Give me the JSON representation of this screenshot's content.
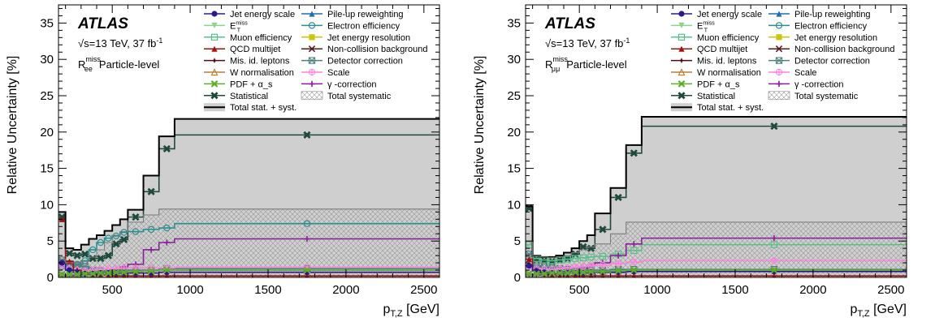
{
  "chart_data": [
    {
      "type": "line",
      "experiment": "ATLAS",
      "energy_label": "√s=13 TeV, 37 fb",
      "lumi_exponent": "-1",
      "ratio_symbol": "R",
      "ratio_sup": "miss",
      "ratio_sub": "ee",
      "level_label": "Particle-level",
      "xlabel_main": "p",
      "xlabel_sub": "T,Z",
      "xlabel_unit": " [GeV]",
      "ylabel": "Relative Uncertainty [%]",
      "xlim": [
        155,
        2600
      ],
      "ylim": [
        0,
        37.5
      ],
      "xticks": [
        500,
        1000,
        1500,
        2000,
        2500
      ],
      "yticks": [
        0,
        5,
        10,
        15,
        20,
        25,
        30,
        35
      ],
      "bin_edges": [
        155,
        200,
        250,
        300,
        350,
        400,
        450,
        500,
        550,
        600,
        700,
        800,
        900,
        2600
      ],
      "legend": {
        "left": [
          {
            "label": "Jet energy scale",
            "marker": "circle-filled",
            "color": "#2b1a8f"
          },
          {
            "label": "E",
            "sub": "T",
            "sup": "miss",
            "marker": "triangle-down",
            "color": "#8fd18f"
          },
          {
            "label": "Muon efficiency",
            "marker": "square-open",
            "color": "#5cc08a"
          },
          {
            "label": "QCD multijet",
            "marker": "triangle-up",
            "color": "#a01010"
          },
          {
            "label": "Mis. id. leptons",
            "marker": "star",
            "color": "#4a0a14"
          },
          {
            "label": "W normalisation",
            "marker": "triangle-open",
            "color": "#c07a30"
          },
          {
            "label": "PDF + α_s",
            "marker": "cross",
            "color": "#5fae2a"
          },
          {
            "label": "Statistical",
            "marker": "cross-thick",
            "color": "#1e4a3e"
          },
          {
            "label": "Total stat. + syst.",
            "marker": "band-filled",
            "color": "#d0cfd0"
          }
        ],
        "right": [
          {
            "label": "Pile-up reweighting",
            "marker": "triangle-up",
            "color": "#1f6fb8"
          },
          {
            "label": "Electron efficiency",
            "marker": "circle-open",
            "color": "#2a8f8f"
          },
          {
            "label": "Jet energy resolution",
            "marker": "square-filled",
            "color": "#c8c80a"
          },
          {
            "label": "Non-collision background",
            "marker": "x",
            "color": "#5a1820"
          },
          {
            "label": "Detector correction",
            "marker": "square-x",
            "color": "#4f8080"
          },
          {
            "label": "Scale",
            "marker": "circle-plus",
            "color": "#ff80e0"
          },
          {
            "label": "γ -correction",
            "marker": "plus",
            "color": "#8a1e9a"
          },
          {
            "label": "Total systematic",
            "marker": "band-hatched",
            "color": "#b0b0b0"
          }
        ]
      },
      "total_values": [
        9.0,
        4.0,
        3.8,
        4.5,
        5.3,
        5.8,
        6.4,
        7.2,
        8.0,
        9.3,
        14.0,
        19.4,
        21.8
      ],
      "systematic_values": [
        2.5,
        2.0,
        2.0,
        2.2,
        2.8,
        3.8,
        4.8,
        5.8,
        6.3,
        7.6,
        8.6,
        9.4,
        9.4
      ],
      "series": [
        {
          "name": "Statistical",
          "color": "#1e4a3e",
          "values": [
            8.3,
            3.3,
            3.0,
            3.2,
            2.6,
            2.6,
            3.0,
            4.6,
            5.2,
            8.3,
            11.8,
            17.7,
            19.6
          ]
        },
        {
          "name": "Electron efficiency",
          "color": "#2a8f8f",
          "values": [
            1.5,
            1.6,
            1.8,
            2.3,
            3.8,
            4.8,
            5.4,
            5.7,
            6.2,
            6.3,
            6.6,
            6.8,
            7.4
          ]
        },
        {
          "name": "γ -correction",
          "color": "#8a1e9a",
          "values": [
            0.3,
            0.2,
            0.3,
            0.4,
            0.5,
            0.6,
            0.8,
            1.0,
            1.4,
            1.8,
            3.8,
            4.8,
            5.3
          ]
        },
        {
          "name": "Detector correction",
          "color": "#4f8080",
          "values": [
            2.4,
            1.9,
            1.7,
            1.5,
            1.0,
            0.9,
            0.8,
            0.7,
            0.9,
            1.0,
            1.0,
            1.2,
            1.2
          ]
        },
        {
          "name": "Scale",
          "color": "#ff80e0",
          "values": [
            1.6,
            1.2,
            1.0,
            0.9,
            1.0,
            1.1,
            1.2,
            1.2,
            1.3,
            1.3,
            1.3,
            1.3,
            1.4
          ]
        },
        {
          "name": "QCD multijet",
          "color": "#a01010",
          "values": [
            8.0,
            2.2,
            1.0,
            0.6,
            0.4,
            0.3,
            0.3,
            0.2,
            0.2,
            0.2,
            0.2,
            0.2,
            0.2
          ]
        },
        {
          "name": "Jet energy scale",
          "color": "#2b1a8f",
          "values": [
            2.0,
            1.0,
            0.7,
            0.5,
            0.5,
            0.6,
            0.6,
            0.6,
            0.6,
            0.6,
            0.6,
            0.7,
            0.7
          ]
        },
        {
          "name": "PDF + α_s",
          "color": "#5fae2a",
          "values": [
            0.4,
            0.4,
            0.4,
            0.5,
            0.5,
            0.6,
            0.6,
            0.7,
            0.7,
            0.8,
            0.9,
            1.0,
            1.0
          ]
        }
      ]
    },
    {
      "type": "line",
      "experiment": "ATLAS",
      "energy_label": "√s=13 TeV, 37 fb",
      "lumi_exponent": "-1",
      "ratio_symbol": "R",
      "ratio_sup": "miss",
      "ratio_sub": "μμ",
      "level_label": "Particle-level",
      "xlabel_main": "p",
      "xlabel_sub": "T,Z",
      "xlabel_unit": " [GeV]",
      "ylabel": "Relative Uncertainty [%]",
      "xlim": [
        155,
        2600
      ],
      "ylim": [
        0,
        37.5
      ],
      "xticks": [
        500,
        1000,
        1500,
        2000,
        2500
      ],
      "yticks": [
        0,
        5,
        10,
        15,
        20,
        25,
        30,
        35
      ],
      "bin_edges": [
        155,
        200,
        250,
        300,
        350,
        400,
        450,
        500,
        550,
        600,
        700,
        800,
        900,
        2600
      ],
      "legend": {
        "left": [
          {
            "label": "Jet energy scale",
            "marker": "circle-filled",
            "color": "#2b1a8f"
          },
          {
            "label": "E",
            "sub": "T",
            "sup": "miss",
            "marker": "triangle-down",
            "color": "#8fd18f"
          },
          {
            "label": "Muon efficiency",
            "marker": "square-open",
            "color": "#5cc08a"
          },
          {
            "label": "QCD multijet",
            "marker": "triangle-up",
            "color": "#a01010"
          },
          {
            "label": "Mis. id. leptons",
            "marker": "star",
            "color": "#4a0a14"
          },
          {
            "label": "W normalisation",
            "marker": "triangle-open",
            "color": "#c07a30"
          },
          {
            "label": "PDF + α_s",
            "marker": "cross",
            "color": "#5fae2a"
          },
          {
            "label": "Statistical",
            "marker": "cross-thick",
            "color": "#1e4a3e"
          },
          {
            "label": "Total stat. + syst.",
            "marker": "band-filled",
            "color": "#d0cfd0"
          }
        ],
        "right": [
          {
            "label": "Pile-up reweighting",
            "marker": "triangle-up",
            "color": "#1f6fb8"
          },
          {
            "label": "Electron efficiency",
            "marker": "circle-open",
            "color": "#2a8f8f"
          },
          {
            "label": "Jet energy resolution",
            "marker": "square-filled",
            "color": "#c8c80a"
          },
          {
            "label": "Non-collision background",
            "marker": "x",
            "color": "#5a1820"
          },
          {
            "label": "Detector correction",
            "marker": "square-x",
            "color": "#4f8080"
          },
          {
            "label": "Scale",
            "marker": "circle-plus",
            "color": "#ff80e0"
          },
          {
            "label": "γ -correction",
            "marker": "plus",
            "color": "#8a1e9a"
          },
          {
            "label": "Total systematic",
            "marker": "band-hatched",
            "color": "#b0b0b0"
          }
        ]
      },
      "total_values": [
        9.8,
        3.0,
        2.8,
        2.8,
        3.0,
        3.4,
        4.0,
        5.0,
        5.8,
        8.8,
        12.3,
        18.2,
        22.1
      ],
      "systematic_values": [
        5.0,
        3.0,
        2.8,
        2.7,
        2.8,
        3.0,
        3.4,
        3.8,
        4.2,
        4.6,
        6.0,
        7.6,
        7.6
      ],
      "series": [
        {
          "name": "Statistical",
          "color": "#1e4a3e",
          "values": [
            9.5,
            2.5,
            2.3,
            2.2,
            2.4,
            2.6,
            3.2,
            4.2,
            4.0,
            6.6,
            11.0,
            17.1,
            20.8
          ]
        },
        {
          "name": "Muon efficiency",
          "color": "#5cc08a",
          "values": [
            4.5,
            2.6,
            2.4,
            2.3,
            2.4,
            2.5,
            2.6,
            2.7,
            2.8,
            2.9,
            3.2,
            3.7,
            4.5
          ]
        },
        {
          "name": "γ -correction",
          "color": "#8a1e9a",
          "values": [
            0.3,
            0.3,
            0.4,
            0.5,
            0.6,
            0.8,
            1.0,
            1.2,
            1.6,
            2.0,
            3.0,
            4.6,
            5.4
          ]
        },
        {
          "name": "Detector correction",
          "color": "#4f8080",
          "values": [
            3.2,
            1.6,
            1.4,
            1.3,
            1.2,
            1.1,
            1.0,
            1.0,
            1.0,
            1.0,
            1.1,
            1.1,
            1.1
          ]
        },
        {
          "name": "Scale",
          "color": "#ff80e0",
          "values": [
            1.4,
            1.2,
            1.1,
            1.1,
            1.2,
            1.3,
            1.4,
            1.5,
            1.6,
            1.7,
            1.9,
            2.1,
            2.3
          ]
        },
        {
          "name": "QCD multijet",
          "color": "#a01010",
          "values": [
            2.5,
            1.0,
            0.5,
            0.3,
            0.2,
            0.2,
            0.2,
            0.2,
            0.2,
            0.2,
            0.2,
            0.2,
            0.2
          ]
        },
        {
          "name": "Jet energy scale",
          "color": "#2b1a8f",
          "values": [
            1.6,
            0.9,
            0.7,
            0.6,
            0.6,
            0.6,
            0.6,
            0.6,
            0.7,
            0.7,
            0.7,
            0.8,
            0.8
          ]
        },
        {
          "name": "PDF + α_s",
          "color": "#5fae2a",
          "values": [
            0.5,
            0.5,
            0.5,
            0.6,
            0.6,
            0.6,
            0.7,
            0.7,
            0.8,
            0.8,
            0.9,
            1.0,
            1.0
          ]
        }
      ]
    }
  ]
}
